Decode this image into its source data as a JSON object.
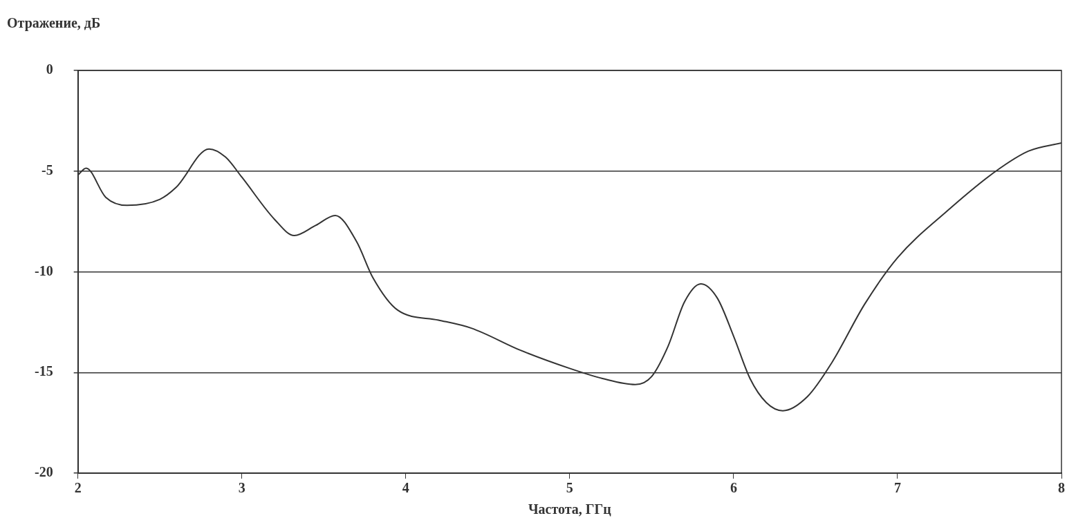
{
  "chart_data": {
    "type": "line",
    "ylabel": "Отражение, дБ",
    "xlabel": "Частота, ГГц",
    "xlim": [
      2,
      8
    ],
    "xticks": [
      2,
      3,
      4,
      5,
      6,
      7,
      8
    ],
    "ylim": [
      -20,
      0
    ],
    "yticks": [
      -20,
      -15,
      -10,
      -5,
      0
    ],
    "grid": "y",
    "legend": false,
    "marker": "none",
    "line_style": "solid",
    "series": [
      {
        "color": "#333333",
        "x": [
          2.0,
          2.05,
          2.17,
          2.3,
          2.5,
          2.6,
          2.8,
          2.9,
          3.0,
          3.2,
          3.32,
          3.45,
          3.57,
          3.7,
          3.8,
          3.95,
          4.2,
          4.4,
          4.7,
          5.0,
          5.2,
          5.4,
          5.5,
          5.6,
          5.7,
          5.8,
          5.9,
          6.0,
          6.1,
          6.2,
          6.3,
          6.45,
          6.6,
          6.8,
          7.0,
          7.3,
          7.6,
          7.8,
          8.0
        ],
        "values": [
          -5.2,
          -4.85,
          -6.3,
          -6.7,
          -6.4,
          -5.8,
          -3.9,
          -4.3,
          -5.3,
          -7.4,
          -8.2,
          -7.7,
          -7.2,
          -8.5,
          -10.3,
          -11.9,
          -12.4,
          -12.8,
          -13.9,
          -14.8,
          -15.3,
          -15.6,
          -15.2,
          -13.7,
          -11.5,
          -10.6,
          -11.3,
          -13.2,
          -15.3,
          -16.5,
          -16.9,
          -16.2,
          -14.5,
          -11.6,
          -9.3,
          -7.0,
          -5.0,
          -4.0,
          -3.6
        ]
      }
    ]
  }
}
